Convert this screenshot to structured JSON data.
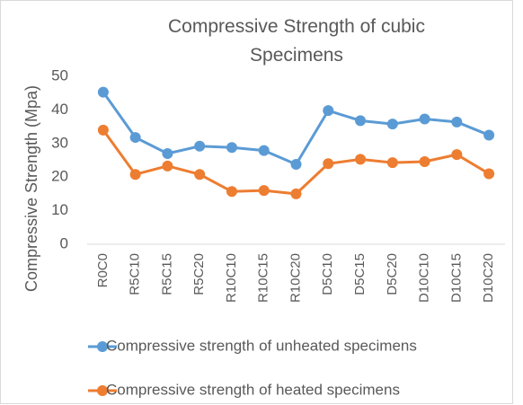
{
  "chart_data": {
    "type": "line",
    "title": "Compressive Strength of cubic Specimens",
    "y_label": "Compressive Strength (Mpa)",
    "categories": [
      "R0C0",
      "R5C10",
      "R5C15",
      "R5C20",
      "R10C10",
      "R10C15",
      "R10C20",
      "D5C10",
      "D5C15",
      "D5C20",
      "D10C10",
      "D10C15",
      "D10C20"
    ],
    "series": [
      {
        "name": "Compressive strength of unheated specimens",
        "color": "#5b9bd5",
        "values": [
          45.3,
          31.8,
          27,
          29.2,
          28.8,
          27.9,
          23.8,
          39.8,
          36.8,
          35.8,
          37.3,
          36.4,
          32.5
        ]
      },
      {
        "name": "Compressive strength of heated specimens",
        "color": "#ed7d31",
        "values": [
          34,
          20.8,
          23.3,
          20.8,
          15.7,
          16,
          15,
          24,
          25.3,
          24.3,
          24.6,
          26.7,
          21
        ]
      }
    ],
    "ylim": [
      0,
      50
    ],
    "yticks": [
      0,
      10,
      20,
      30,
      40,
      50
    ],
    "grid": false,
    "legend": "bottom"
  }
}
